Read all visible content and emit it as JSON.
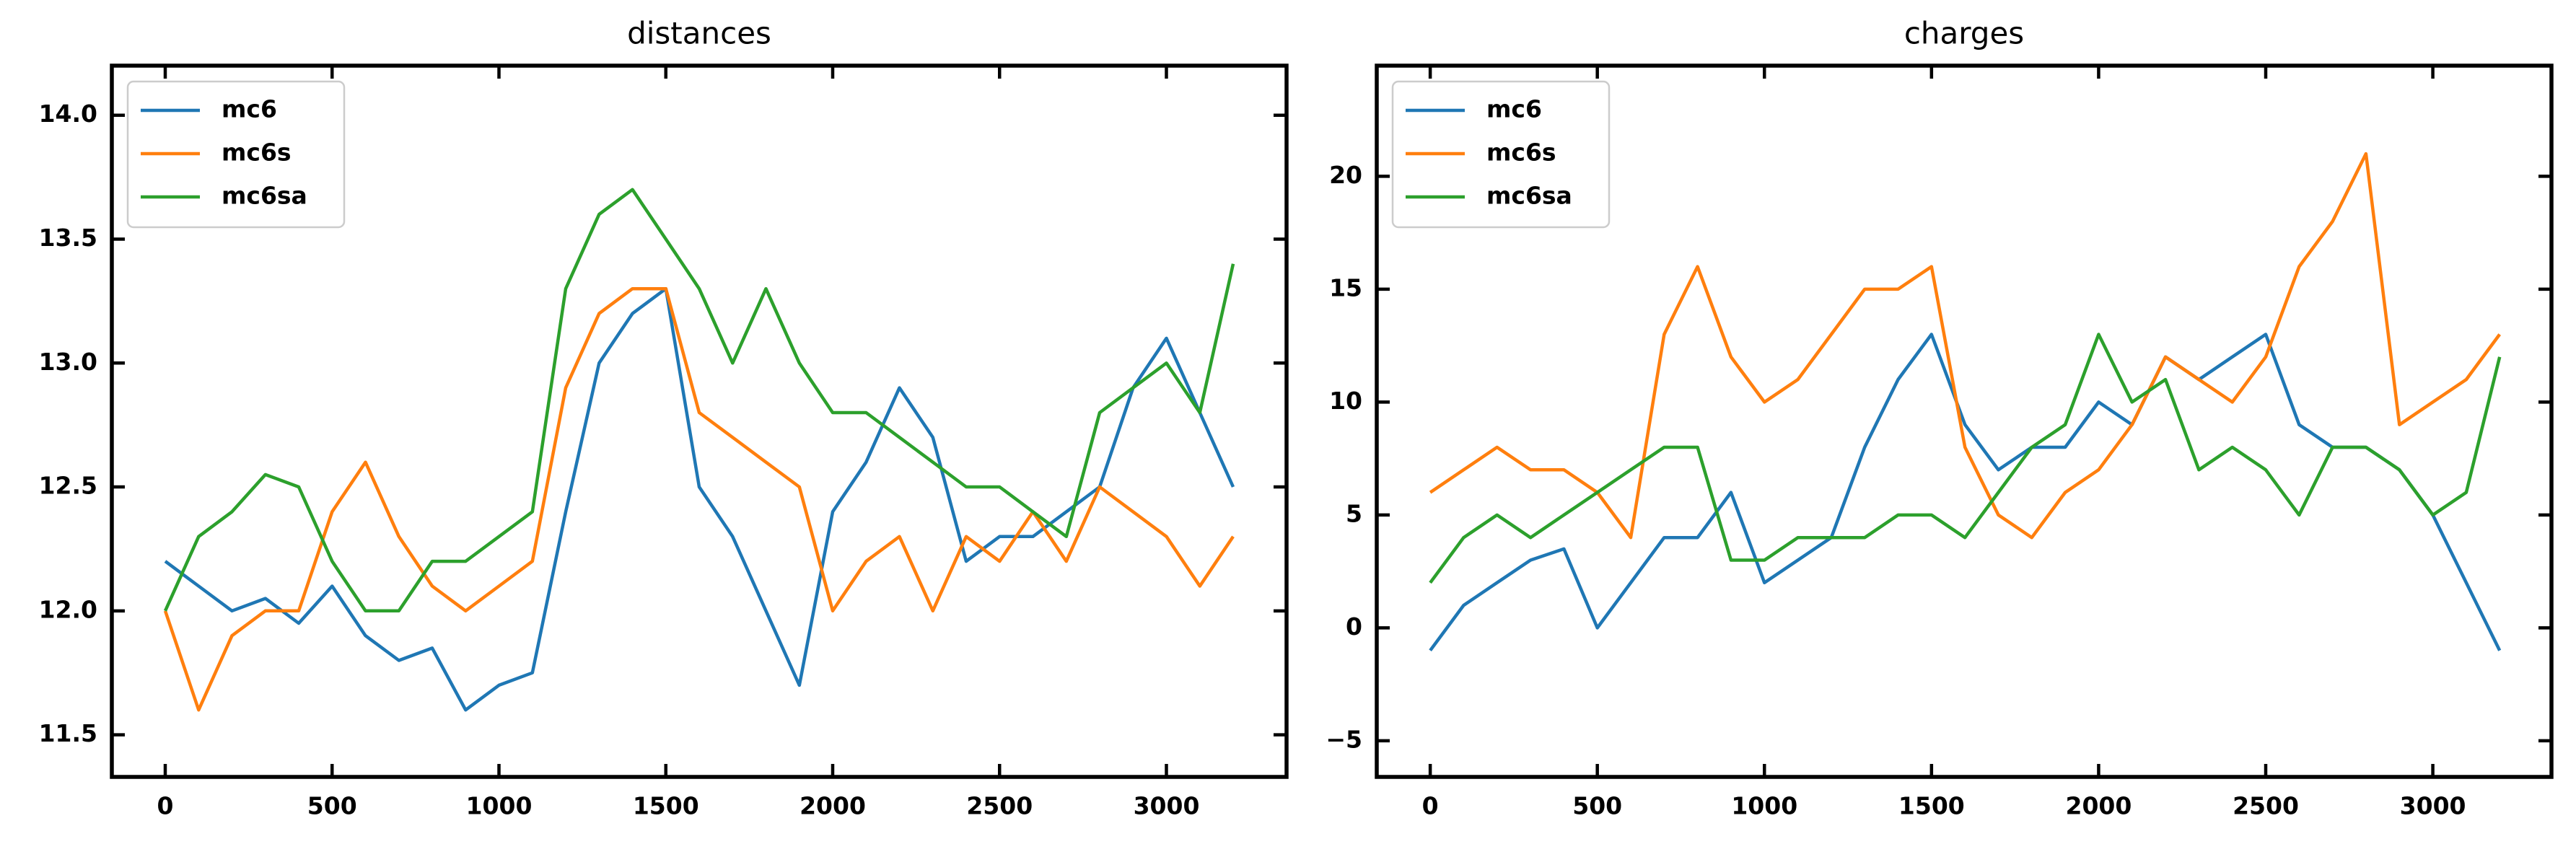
{
  "chart_data": [
    {
      "type": "line",
      "title": "distances",
      "legend": "upper left",
      "grid": false,
      "x": [
        0,
        100,
        200,
        300,
        400,
        500,
        600,
        700,
        800,
        900,
        1000,
        1100,
        1200,
        1300,
        1400,
        1500,
        1600,
        1700,
        1800,
        1900,
        2000,
        2100,
        2200,
        2300,
        2400,
        2500,
        2600,
        2700,
        2800,
        2900,
        3000,
        3100,
        3200
      ],
      "xlim": [
        -160,
        3360
      ],
      "xticks": [
        0,
        500,
        1000,
        1500,
        2000,
        2500,
        3000
      ],
      "ylim": [
        11.33,
        14.2
      ],
      "yticks": [
        11.5,
        {
          "value": 12,
          "label": "12.0"
        },
        12.5,
        {
          "value": 13,
          "label": "13.0"
        },
        13.5,
        {
          "value": 14,
          "label": "14.0"
        }
      ],
      "series": [
        {
          "name": "mc6",
          "color": "#1f77b4",
          "values": [
            12.2,
            12.1,
            12.0,
            12.05,
            11.95,
            12.1,
            11.9,
            11.8,
            11.85,
            11.6,
            11.7,
            11.75,
            12.4,
            13.0,
            13.2,
            13.3,
            12.5,
            12.3,
            12.0,
            11.7,
            12.4,
            12.6,
            12.9,
            12.7,
            12.2,
            12.3,
            12.3,
            12.4,
            12.5,
            12.9,
            13.1,
            12.8,
            12.5
          ]
        },
        {
          "name": "mc6s",
          "color": "#ff7f0e",
          "values": [
            12.0,
            11.6,
            11.9,
            12.0,
            12.0,
            12.4,
            12.6,
            12.3,
            12.1,
            12.0,
            12.1,
            12.2,
            12.9,
            13.2,
            13.3,
            13.3,
            12.8,
            12.7,
            12.6,
            12.5,
            12.0,
            12.2,
            12.3,
            12.0,
            12.3,
            12.2,
            12.4,
            12.2,
            12.5,
            12.4,
            12.3,
            12.1,
            12.3
          ]
        },
        {
          "name": "mc6sa",
          "color": "#2ca02c",
          "values": [
            12.0,
            12.3,
            12.4,
            12.55,
            12.5,
            12.2,
            12.0,
            12.0,
            12.2,
            12.2,
            12.3,
            12.4,
            13.3,
            13.6,
            13.7,
            13.5,
            13.3,
            13.0,
            13.3,
            13.0,
            12.8,
            12.8,
            12.7,
            12.6,
            12.5,
            12.5,
            12.4,
            12.3,
            12.8,
            12.9,
            13.0,
            12.8,
            13.4
          ]
        }
      ]
    },
    {
      "type": "line",
      "title": "charges",
      "legend": "upper left",
      "grid": false,
      "x": [
        0,
        100,
        200,
        300,
        400,
        500,
        600,
        700,
        800,
        900,
        1000,
        1100,
        1200,
        1300,
        1400,
        1500,
        1600,
        1700,
        1800,
        1900,
        2000,
        2100,
        2200,
        2300,
        2400,
        2500,
        2600,
        2700,
        2800,
        2900,
        3000,
        3100,
        3200
      ],
      "xlim": [
        -160,
        3355
      ],
      "xticks": [
        0,
        500,
        1000,
        1500,
        2000,
        2500,
        3000
      ],
      "ylim": [
        -6.6,
        24.9
      ],
      "yticks": [
        {
          "value": -5,
          "label": "−5"
        },
        0,
        5,
        10,
        15,
        20
      ],
      "series": [
        {
          "name": "mc6",
          "color": "#1f77b4",
          "values": [
            -1,
            1,
            2,
            3,
            3.5,
            0,
            2,
            4,
            4,
            6,
            2,
            3,
            4,
            8,
            11,
            13,
            9,
            7,
            8,
            8,
            10,
            9,
            12,
            11,
            12,
            13,
            9,
            8,
            8,
            7,
            5,
            2,
            -1
          ]
        },
        {
          "name": "mc6s",
          "color": "#ff7f0e",
          "values": [
            6,
            7,
            8,
            7,
            7,
            6,
            4,
            13,
            16,
            12,
            10,
            11,
            13,
            15,
            15,
            16,
            8,
            5,
            4,
            6,
            7,
            9,
            12,
            11,
            10,
            12,
            16,
            18,
            21,
            9,
            10,
            11,
            13
          ]
        },
        {
          "name": "mc6sa",
          "color": "#2ca02c",
          "values": [
            2,
            4,
            5,
            4,
            5,
            6,
            7,
            8,
            8,
            3,
            3,
            4,
            4,
            4,
            5,
            5,
            4,
            6,
            8,
            9,
            13,
            10,
            11,
            7,
            8,
            7,
            5,
            8,
            8,
            7,
            5,
            6,
            12
          ]
        }
      ]
    }
  ]
}
